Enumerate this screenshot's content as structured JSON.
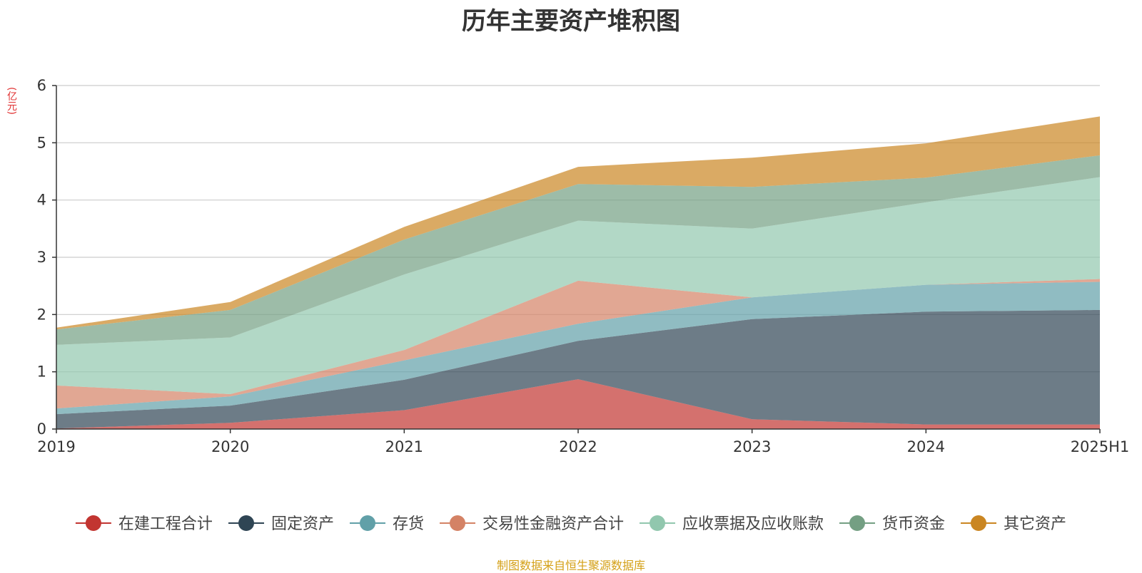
{
  "chart_data": {
    "type": "area",
    "stacked": true,
    "title": "历年主要资产堆积图",
    "unit": "(亿元)",
    "x": [
      "2019",
      "2020",
      "2021",
      "2022",
      "2023",
      "2024",
      "2025H1"
    ],
    "ylim": [
      0,
      6
    ],
    "yticks": [
      0,
      1,
      2,
      3,
      4,
      5,
      6
    ],
    "grid": true,
    "legend_position": "bottom",
    "series": [
      {
        "name": "在建工程合计",
        "color": "#c23531",
        "values": [
          0.01,
          0.11,
          0.33,
          0.87,
          0.17,
          0.08,
          0.08
        ]
      },
      {
        "name": "固定资产",
        "color": "#2f4554",
        "values": [
          0.25,
          0.3,
          0.53,
          0.67,
          1.75,
          1.97,
          2.0
        ]
      },
      {
        "name": "存货",
        "color": "#61a0a8",
        "values": [
          0.1,
          0.16,
          0.34,
          0.3,
          0.38,
          0.47,
          0.49
        ]
      },
      {
        "name": "交易性金融资产合计",
        "color": "#d48265",
        "values": [
          0.4,
          0.04,
          0.18,
          0.75,
          0.0,
          0.0,
          0.05
        ]
      },
      {
        "name": "应收票据及应收账款",
        "color": "#91c7ae",
        "values": [
          0.71,
          0.99,
          1.32,
          1.05,
          1.2,
          1.44,
          1.78
        ]
      },
      {
        "name": "货币资金",
        "color": "#749f83",
        "values": [
          0.27,
          0.48,
          0.61,
          0.64,
          0.73,
          0.43,
          0.38
        ]
      },
      {
        "name": "其它资产",
        "color": "#ca8622",
        "values": [
          0.03,
          0.14,
          0.22,
          0.3,
          0.51,
          0.6,
          0.68
        ]
      }
    ],
    "source": "制图数据来自恒生聚源数据库"
  }
}
